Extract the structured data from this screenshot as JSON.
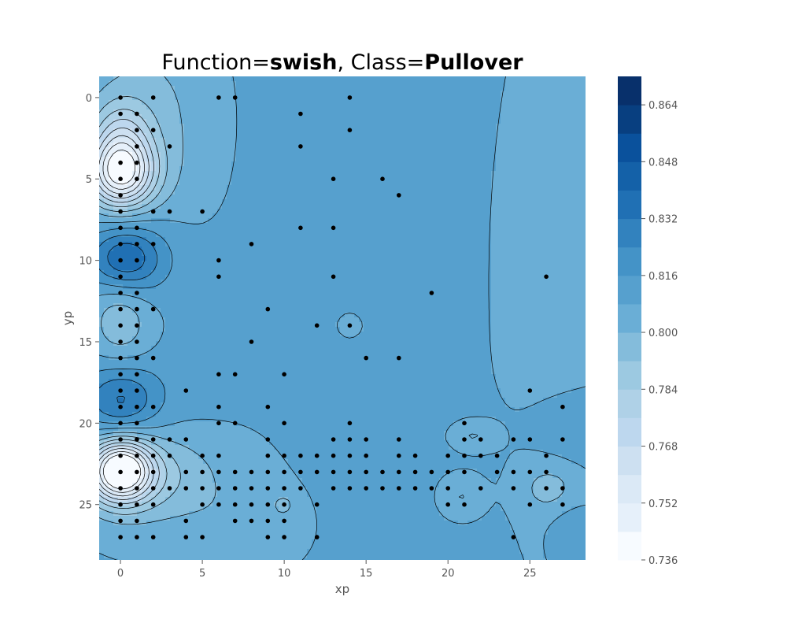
{
  "chart_data": {
    "type": "contour",
    "title": {
      "function_label": "Function=",
      "function_value": "swish",
      "separator": ", ",
      "class_label": "Class=",
      "class_value": "Pullover"
    },
    "xlabel": "xp",
    "ylabel": "yp",
    "xlim": [
      -1.3,
      28.4
    ],
    "ylim": [
      28.4,
      -1.3
    ],
    "xticks": [
      0,
      5,
      10,
      15,
      20,
      25
    ],
    "yticks": [
      0,
      5,
      10,
      15,
      20,
      25
    ],
    "colorbar": {
      "range": [
        0.736,
        0.872
      ],
      "levels": [
        0.736,
        0.744,
        0.752,
        0.76,
        0.768,
        0.776,
        0.784,
        0.792,
        0.8,
        0.808,
        0.816,
        0.824,
        0.832,
        0.84,
        0.848,
        0.856,
        0.864,
        0.872
      ],
      "tick_values": [
        0.736,
        0.752,
        0.768,
        0.784,
        0.8,
        0.816,
        0.832,
        0.848,
        0.864
      ],
      "tick_labels": [
        "0.736",
        "0.752",
        "0.768",
        "0.784",
        "0.800",
        "0.816",
        "0.832",
        "0.848",
        "0.864"
      ],
      "colors": [
        "#f7fbff",
        "#e6f0fa",
        "#dbe9f6",
        "#cde0f1",
        "#bdd7ee",
        "#afd1e7",
        "#9cc9e1",
        "#84bcdb",
        "#6aaed6",
        "#56a0ce",
        "#4493c7",
        "#3282be",
        "#2070b4",
        "#1461a8",
        "#0a519c",
        "#083f80",
        "#08306b"
      ]
    },
    "background_value": 0.81,
    "blobs": [
      {
        "x": 0.0,
        "y": 4.6,
        "sx": 1.4,
        "sy": 1.5,
        "amp": -0.065
      },
      {
        "x": 0.0,
        "y": 2.0,
        "sx": 1.3,
        "sy": 1.5,
        "amp": -0.02
      },
      {
        "x": 1.8,
        "y": 1.5,
        "sx": 2.8,
        "sy": 5.0,
        "amp": -0.012
      },
      {
        "x": 0.2,
        "y": 10.0,
        "sx": 1.5,
        "sy": 1.4,
        "amp": 0.028
      },
      {
        "x": 1.2,
        "y": 9.5,
        "sx": 2.0,
        "sy": 1.9,
        "amp": 0.008
      },
      {
        "x": 0.0,
        "y": 13.6,
        "sx": 1.3,
        "sy": 2.2,
        "amp": -0.016
      },
      {
        "x": 0.0,
        "y": 18.6,
        "sx": 1.6,
        "sy": 1.6,
        "amp": 0.024
      },
      {
        "x": 2.5,
        "y": 19.0,
        "sx": 3.4,
        "sy": 2.2,
        "amp": 0.006
      },
      {
        "x": 0.0,
        "y": 22.9,
        "sx": 1.3,
        "sy": 1.3,
        "amp": -0.07
      },
      {
        "x": 1.0,
        "y": 23.2,
        "sx": 2.5,
        "sy": 1.6,
        "amp": -0.014
      },
      {
        "x": 2.5,
        "y": 22.5,
        "sx": 4.0,
        "sy": 3.5,
        "amp": -0.01
      },
      {
        "x": 27.5,
        "y": 20.0,
        "sx": 2.0,
        "sy": 2.0,
        "amp": 0.01
      },
      {
        "x": 26.8,
        "y": 11.5,
        "sx": 2.4,
        "sy": 11.0,
        "amp": -0.01
      },
      {
        "x": 20.8,
        "y": 24.5,
        "sx": 0.9,
        "sy": 0.9,
        "amp": -0.01
      },
      {
        "x": 21.5,
        "y": 20.8,
        "sx": 0.9,
        "sy": 0.6,
        "amp": -0.01
      },
      {
        "x": 26.2,
        "y": 24.0,
        "sx": 1.2,
        "sy": 1.0,
        "amp": -0.01
      },
      {
        "x": 10.0,
        "y": 25.0,
        "sx": 0.5,
        "sy": 0.5,
        "amp": -0.008
      },
      {
        "x": 14.0,
        "y": 14.0,
        "sx": 0.45,
        "sy": 0.45,
        "amp": -0.008
      },
      {
        "x": 8.0,
        "y": 26.5,
        "sx": 2.5,
        "sy": 2.0,
        "amp": -0.006
      },
      {
        "x": 27.5,
        "y": 26.5,
        "sx": 1.0,
        "sy": 1.5,
        "amp": 0.006
      }
    ],
    "points": [
      [
        0,
        0
      ],
      [
        2,
        0
      ],
      [
        6,
        0
      ],
      [
        7,
        0
      ],
      [
        14,
        0
      ],
      [
        0,
        1
      ],
      [
        1,
        1
      ],
      [
        11,
        1
      ],
      [
        1,
        2
      ],
      [
        2,
        2
      ],
      [
        14,
        2
      ],
      [
        1,
        3
      ],
      [
        3,
        3
      ],
      [
        11,
        3
      ],
      [
        0,
        4
      ],
      [
        1,
        4
      ],
      [
        0,
        5
      ],
      [
        1,
        5
      ],
      [
        13,
        5
      ],
      [
        16,
        5
      ],
      [
        0,
        6
      ],
      [
        17,
        6
      ],
      [
        0,
        7
      ],
      [
        2,
        7
      ],
      [
        3,
        7
      ],
      [
        5,
        7
      ],
      [
        0,
        8
      ],
      [
        1,
        8
      ],
      [
        11,
        8
      ],
      [
        13,
        8
      ],
      [
        0,
        9
      ],
      [
        1,
        9
      ],
      [
        2,
        9
      ],
      [
        8,
        9
      ],
      [
        0,
        10
      ],
      [
        1,
        10
      ],
      [
        6,
        10
      ],
      [
        0,
        11
      ],
      [
        6,
        11
      ],
      [
        13,
        11
      ],
      [
        26,
        11
      ],
      [
        0,
        12
      ],
      [
        1,
        12
      ],
      [
        19,
        12
      ],
      [
        0,
        13
      ],
      [
        1,
        13
      ],
      [
        2,
        13
      ],
      [
        9,
        13
      ],
      [
        0,
        14
      ],
      [
        1,
        14
      ],
      [
        12,
        14
      ],
      [
        14,
        14
      ],
      [
        0,
        15
      ],
      [
        1,
        15
      ],
      [
        8,
        15
      ],
      [
        0,
        16
      ],
      [
        1,
        16
      ],
      [
        2,
        16
      ],
      [
        15,
        16
      ],
      [
        17,
        16
      ],
      [
        0,
        17
      ],
      [
        1,
        17
      ],
      [
        6,
        17
      ],
      [
        7,
        17
      ],
      [
        10,
        17
      ],
      [
        0,
        18
      ],
      [
        1,
        18
      ],
      [
        4,
        18
      ],
      [
        25,
        18
      ],
      [
        0,
        19
      ],
      [
        1,
        19
      ],
      [
        2,
        19
      ],
      [
        6,
        19
      ],
      [
        9,
        19
      ],
      [
        27,
        19
      ],
      [
        0,
        20
      ],
      [
        1,
        20
      ],
      [
        6,
        20
      ],
      [
        7,
        20
      ],
      [
        10,
        20
      ],
      [
        14,
        20
      ],
      [
        21,
        20
      ],
      [
        0,
        21
      ],
      [
        1,
        21
      ],
      [
        2,
        21
      ],
      [
        3,
        21
      ],
      [
        4,
        21
      ],
      [
        9,
        21
      ],
      [
        13,
        21
      ],
      [
        14,
        21
      ],
      [
        15,
        21
      ],
      [
        17,
        21
      ],
      [
        21,
        21
      ],
      [
        22,
        21
      ],
      [
        24,
        21
      ],
      [
        25,
        21
      ],
      [
        27,
        21
      ],
      [
        0,
        22
      ],
      [
        1,
        22
      ],
      [
        2,
        22
      ],
      [
        3,
        22
      ],
      [
        5,
        22
      ],
      [
        6,
        22
      ],
      [
        9,
        22
      ],
      [
        10,
        22
      ],
      [
        11,
        22
      ],
      [
        12,
        22
      ],
      [
        13,
        22
      ],
      [
        14,
        22
      ],
      [
        15,
        22
      ],
      [
        17,
        22
      ],
      [
        18,
        22
      ],
      [
        20,
        22
      ],
      [
        21,
        22
      ],
      [
        22,
        22
      ],
      [
        23,
        22
      ],
      [
        26,
        22
      ],
      [
        0,
        23
      ],
      [
        1,
        23
      ],
      [
        2,
        23
      ],
      [
        4,
        23
      ],
      [
        5,
        23
      ],
      [
        6,
        23
      ],
      [
        7,
        23
      ],
      [
        8,
        23
      ],
      [
        9,
        23
      ],
      [
        10,
        23
      ],
      [
        11,
        23
      ],
      [
        12,
        23
      ],
      [
        13,
        23
      ],
      [
        14,
        23
      ],
      [
        15,
        23
      ],
      [
        16,
        23
      ],
      [
        17,
        23
      ],
      [
        18,
        23
      ],
      [
        19,
        23
      ],
      [
        20,
        23
      ],
      [
        21,
        23
      ],
      [
        23,
        23
      ],
      [
        24,
        23
      ],
      [
        25,
        23
      ],
      [
        26,
        23
      ],
      [
        0,
        24
      ],
      [
        1,
        24
      ],
      [
        2,
        24
      ],
      [
        3,
        24
      ],
      [
        4,
        24
      ],
      [
        5,
        24
      ],
      [
        6,
        24
      ],
      [
        7,
        24
      ],
      [
        8,
        24
      ],
      [
        9,
        24
      ],
      [
        10,
        24
      ],
      [
        11,
        24
      ],
      [
        13,
        24
      ],
      [
        14,
        24
      ],
      [
        15,
        24
      ],
      [
        16,
        24
      ],
      [
        17,
        24
      ],
      [
        18,
        24
      ],
      [
        19,
        24
      ],
      [
        20,
        24
      ],
      [
        22,
        24
      ],
      [
        24,
        24
      ],
      [
        26,
        24
      ],
      [
        27,
        24
      ],
      [
        0,
        25
      ],
      [
        1,
        25
      ],
      [
        2,
        25
      ],
      [
        5,
        25
      ],
      [
        6,
        25
      ],
      [
        7,
        25
      ],
      [
        8,
        25
      ],
      [
        9,
        25
      ],
      [
        10,
        25
      ],
      [
        12,
        25
      ],
      [
        20,
        25
      ],
      [
        21,
        25
      ],
      [
        25,
        25
      ],
      [
        27,
        25
      ],
      [
        0,
        26
      ],
      [
        1,
        26
      ],
      [
        4,
        26
      ],
      [
        7,
        26
      ],
      [
        8,
        26
      ],
      [
        9,
        26
      ],
      [
        10,
        26
      ],
      [
        0,
        27
      ],
      [
        1,
        27
      ],
      [
        2,
        27
      ],
      [
        4,
        27
      ],
      [
        5,
        27
      ],
      [
        9,
        27
      ],
      [
        10,
        27
      ],
      [
        12,
        27
      ],
      [
        24,
        27
      ]
    ]
  }
}
